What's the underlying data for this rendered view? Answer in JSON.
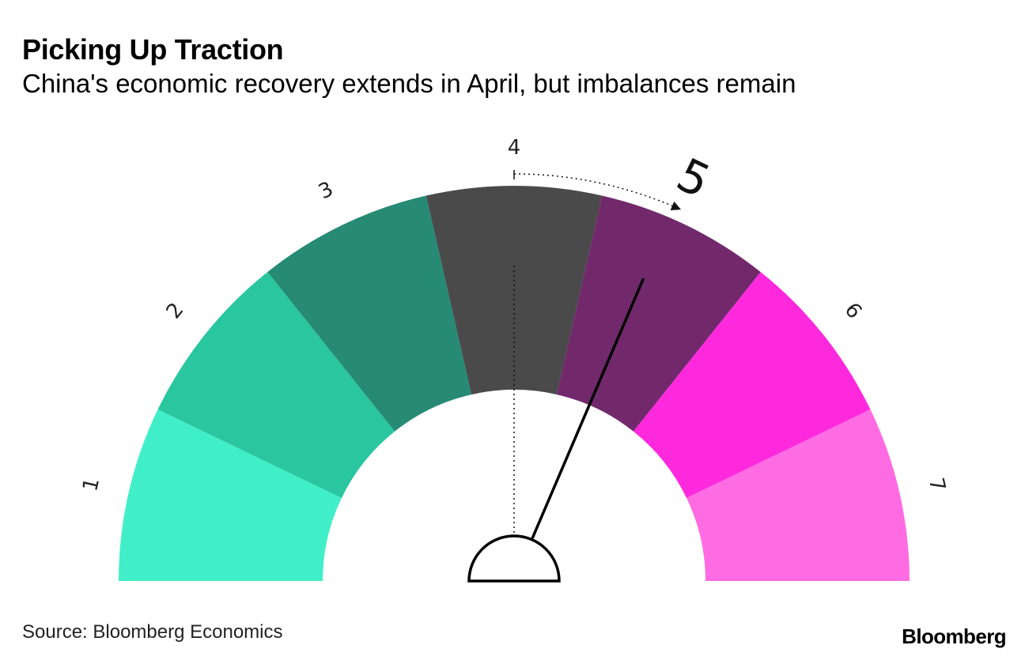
{
  "header": {
    "title": "Picking Up Traction",
    "subtitle": "China's economic recovery extends in April, but imbalances remain"
  },
  "footer": {
    "source": "Source: Bloomberg Economics",
    "brand": "Bloomberg"
  },
  "chart_data": {
    "type": "gauge",
    "title": "Picking Up Traction",
    "subtitle": "China's economic recovery extends in April, but imbalances remain",
    "scale": [
      1,
      7
    ],
    "segments": [
      {
        "label": "1",
        "color": "#40efc8"
      },
      {
        "label": "2",
        "color": "#2ac6a0"
      },
      {
        "label": "3",
        "color": "#278a75"
      },
      {
        "label": "4",
        "color": "#4a4a4a"
      },
      {
        "label": "5",
        "color": "#72296c"
      },
      {
        "label": "6",
        "color": "#fe29dd"
      },
      {
        "label": "7",
        "color": "#ff6be3"
      }
    ],
    "previous_value": 4,
    "current_value": 5,
    "needle_value": 4.9
  }
}
